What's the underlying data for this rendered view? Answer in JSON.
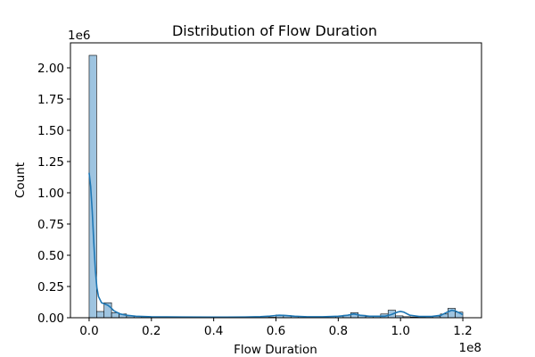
{
  "chart_data": {
    "type": "bar",
    "title": "Distribution of  Flow Duration",
    "xlabel": "Flow Duration",
    "ylabel": "Count",
    "x_offset_label": "1e8",
    "y_offset_label": "1e6",
    "xlim": [
      -0.06,
      1.26
    ],
    "ylim": [
      0,
      2.2
    ],
    "x_ticks": [
      0.0,
      0.2,
      0.4,
      0.6,
      0.8,
      1.0,
      1.2
    ],
    "x_tick_labels": [
      "0.0",
      "0.2",
      "0.4",
      "0.6",
      "0.8",
      "1.0",
      "1.2"
    ],
    "y_ticks": [
      0.0,
      0.25,
      0.5,
      0.75,
      1.0,
      1.25,
      1.5,
      1.75,
      2.0
    ],
    "y_tick_labels": [
      "0.00",
      "0.25",
      "0.50",
      "0.75",
      "1.00",
      "1.25",
      "1.50",
      "1.75",
      "2.00"
    ],
    "bin_width": 0.024,
    "bin_starts": [
      0.0,
      0.024,
      0.048,
      0.072,
      0.096,
      0.12,
      0.144,
      0.168,
      0.192,
      0.216,
      0.24,
      0.264,
      0.288,
      0.312,
      0.336,
      0.36,
      0.384,
      0.408,
      0.432,
      0.456,
      0.48,
      0.504,
      0.528,
      0.552,
      0.576,
      0.6,
      0.624,
      0.648,
      0.672,
      0.696,
      0.72,
      0.744,
      0.768,
      0.792,
      0.816,
      0.84,
      0.864,
      0.888,
      0.912,
      0.936,
      0.96,
      0.984,
      1.008,
      1.032,
      1.056,
      1.08,
      1.104,
      1.128,
      1.152,
      1.176
    ],
    "values": [
      2.1,
      0.05,
      0.12,
      0.04,
      0.03,
      0.015,
      0.01,
      0.008,
      0.006,
      0.005,
      0.005,
      0.004,
      0.004,
      0.004,
      0.004,
      0.003,
      0.003,
      0.003,
      0.003,
      0.003,
      0.003,
      0.003,
      0.003,
      0.003,
      0.004,
      0.022,
      0.018,
      0.012,
      0.01,
      0.008,
      0.008,
      0.008,
      0.01,
      0.012,
      0.02,
      0.04,
      0.02,
      0.01,
      0.015,
      0.03,
      0.06,
      0.015,
      0.008,
      0.006,
      0.006,
      0.008,
      0.012,
      0.03,
      0.075,
      0.045
    ],
    "kde": {
      "x": [
        0.0,
        0.005,
        0.01,
        0.015,
        0.02,
        0.025,
        0.03,
        0.04,
        0.05,
        0.06,
        0.07,
        0.08,
        0.1,
        0.12,
        0.15,
        0.2,
        0.3,
        0.4,
        0.5,
        0.55,
        0.58,
        0.61,
        0.63,
        0.66,
        0.7,
        0.75,
        0.8,
        0.83,
        0.85,
        0.87,
        0.9,
        0.95,
        0.97,
        0.99,
        1.0,
        1.01,
        1.03,
        1.06,
        1.1,
        1.13,
        1.15,
        1.165,
        1.18,
        1.2
      ],
      "y": [
        1.16,
        1.05,
        0.85,
        0.6,
        0.38,
        0.24,
        0.17,
        0.12,
        0.11,
        0.1,
        0.08,
        0.055,
        0.03,
        0.02,
        0.012,
        0.008,
        0.006,
        0.005,
        0.006,
        0.009,
        0.013,
        0.02,
        0.018,
        0.012,
        0.008,
        0.008,
        0.012,
        0.02,
        0.03,
        0.02,
        0.012,
        0.012,
        0.025,
        0.045,
        0.05,
        0.045,
        0.02,
        0.01,
        0.01,
        0.02,
        0.045,
        0.06,
        0.05,
        0.025
      ]
    },
    "grid": false,
    "colors": {
      "bar_fill": "#9ec4e0",
      "bar_stroke": "#000000",
      "kde_line": "#1f77b4",
      "axis": "#000000"
    }
  }
}
